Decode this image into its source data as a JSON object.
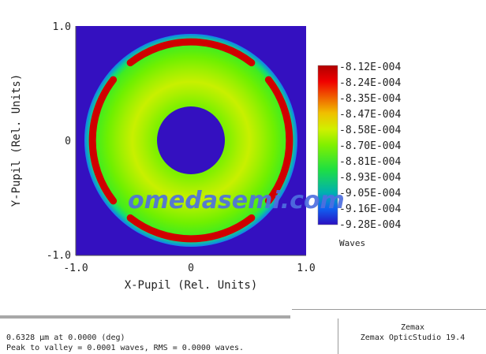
{
  "chart_data": {
    "type": "heatmap",
    "title": "",
    "xlabel": "X-Pupil (Rel. Units)",
    "ylabel": "Y-Pupil (Rel. Units)",
    "xlim": [
      -1.0,
      1.0
    ],
    "ylim": [
      -1.0,
      1.0
    ],
    "x_ticks": [
      "-1.0",
      "0",
      "1.0"
    ],
    "y_ticks": [
      "1.0",
      "0",
      "-1.0"
    ],
    "pupil_outer_radius": 0.93,
    "obscuration_radius": 0.3,
    "colorbar": {
      "label": "Waves",
      "ticks": [
        "-8.12E-004",
        "-8.24E-004",
        "-8.35E-004",
        "-8.47E-004",
        "-8.58E-004",
        "-8.70E-004",
        "-8.81E-004",
        "-8.93E-004",
        "-9.05E-004",
        "-9.16E-004",
        "-9.28E-004"
      ],
      "range": [
        -0.000928,
        -0.000812
      ],
      "colormap": [
        "#2a0fc0",
        "#1060ff",
        "#00c0c0",
        "#20e040",
        "#80f000",
        "#d0f000",
        "#f0c000",
        "#ff6000",
        "#e00000",
        "#b00000"
      ]
    },
    "background_color": "#3410c0",
    "radial_profile": [
      {
        "r": 0.3,
        "value": -0.000882
      },
      {
        "r": 0.45,
        "value": -0.000862
      },
      {
        "r": 0.55,
        "value": -0.00085
      },
      {
        "r": 0.68,
        "value": -0.000862
      },
      {
        "r": 0.85,
        "value": -0.00088
      },
      {
        "r": 0.93,
        "value": -0.00091
      }
    ],
    "peak_arcs": {
      "value": -0.000812,
      "r": 0.86,
      "angles_deg": [
        [
          52,
          128
        ],
        [
          142,
          218
        ],
        [
          232,
          308
        ],
        [
          322,
          398
        ]
      ]
    }
  },
  "watermark": "omedasemi.com",
  "footer": {
    "line1": "0.6328 µm at 0.0000 (deg)",
    "line2": "Peak to valley = 0.0001 waves, RMS = 0.0000 waves.",
    "company": "Zemax",
    "product": "Zemax OpticStudio 19.4"
  }
}
